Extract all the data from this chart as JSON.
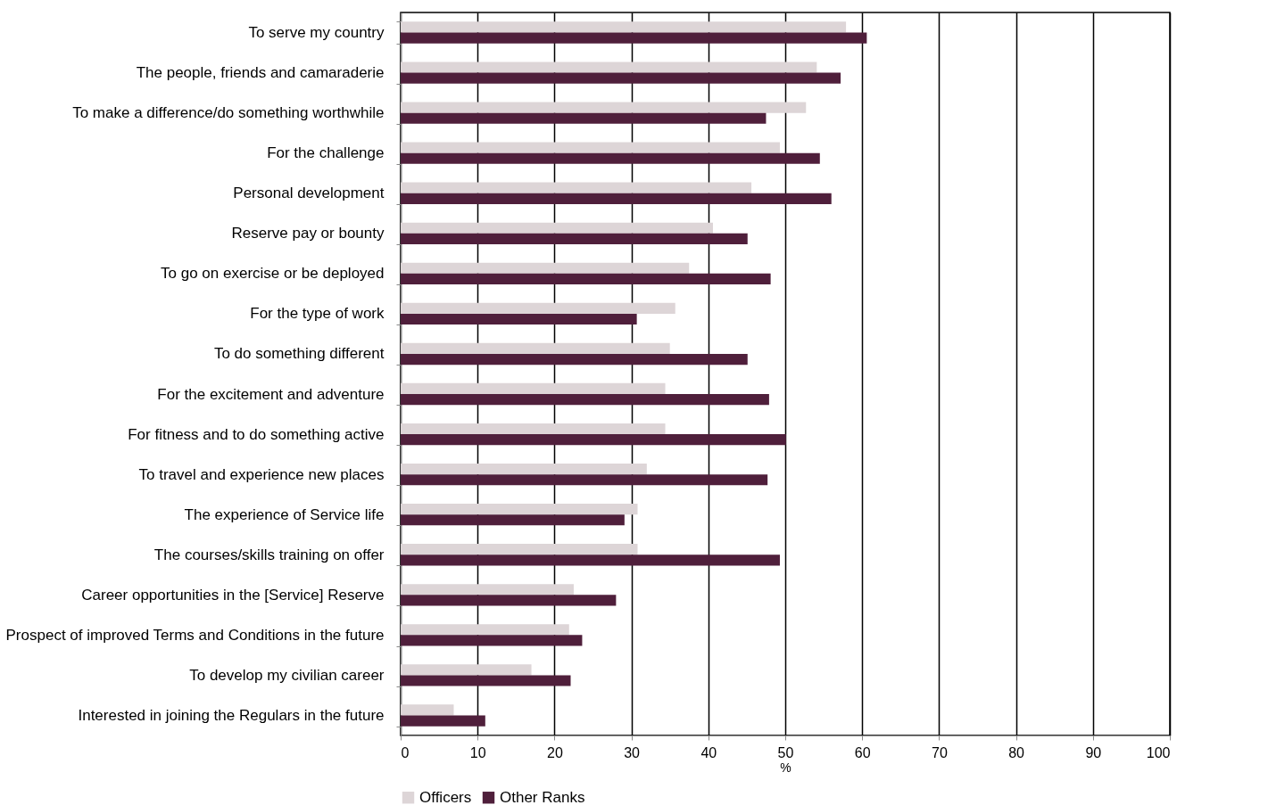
{
  "chart_data": {
    "type": "bar",
    "orientation": "horizontal",
    "xlabel": "%",
    "categories": [
      "To serve my country",
      "The people, friends and camaraderie",
      "To make a difference/do something worthwhile",
      "For the challenge",
      "Personal development",
      "Reserve pay or bounty",
      "To go on exercise or be deployed",
      "For the type of work",
      "To do something different",
      "For the excitement and adventure",
      "For fitness and to do something active",
      "To travel and experience new places",
      "The experience of Service life",
      "The courses/skills training on offer",
      "Career opportunities in the [Service] Reserve",
      "Prospect of improved Terms and Conditions in the future",
      "To develop my civilian career",
      "Interested in joining the Regulars in the future"
    ],
    "series": [
      {
        "name": "Officers",
        "color": "#ddd5d7",
        "values": [
          57.9,
          54.1,
          52.7,
          49.3,
          45.6,
          40.6,
          37.5,
          35.7,
          35.0,
          34.4,
          34.4,
          32.0,
          30.8,
          30.8,
          22.5,
          21.9,
          17.0,
          6.9
        ]
      },
      {
        "name": "Other Ranks",
        "color": "#4f1f3b",
        "values": [
          60.6,
          57.2,
          47.5,
          54.5,
          56.0,
          45.1,
          48.1,
          30.7,
          45.1,
          47.9,
          50.1,
          47.7,
          29.1,
          49.3,
          28.0,
          23.6,
          22.1,
          11.0
        ]
      }
    ],
    "xlim": [
      0,
      100
    ],
    "xticks": [
      0,
      10,
      20,
      30,
      40,
      50,
      60,
      70,
      80,
      90,
      100
    ],
    "grid": "x",
    "legend": "bottom"
  }
}
